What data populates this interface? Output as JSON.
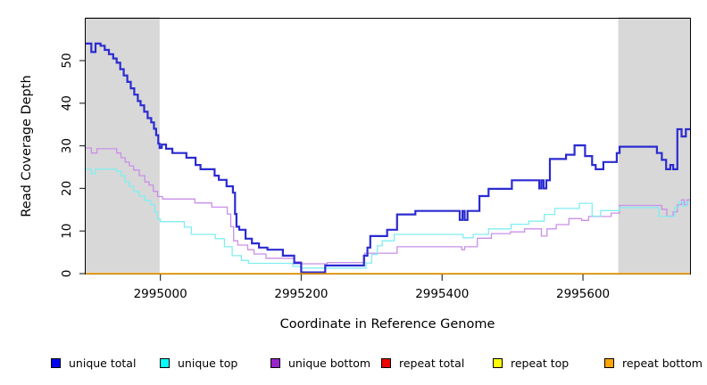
{
  "chart_data": {
    "type": "line",
    "step": true,
    "title": "",
    "xlabel": "Coordinate in Reference Genome",
    "ylabel": "Read Coverage Depth",
    "xlim": [
      2994894,
      2995752
    ],
    "ylim": [
      0,
      59
    ],
    "grid": false,
    "x_ticks": [
      2995000,
      2995200,
      2995400,
      2995600
    ],
    "y_ticks": [
      0,
      10,
      20,
      30,
      40,
      50
    ],
    "shaded_regions": [
      {
        "from": 2994894,
        "to": 2994999,
        "color": "#d8d8d8"
      },
      {
        "from": 2995650,
        "to": 2995752,
        "color": "#d8d8d8"
      }
    ],
    "series": [
      {
        "name": "repeat total",
        "color": "#dd0000",
        "width": 1,
        "points": [
          [
            2994894,
            0
          ]
        ]
      },
      {
        "name": "repeat top",
        "color": "#ffff00",
        "width": 1,
        "points": [
          [
            2994894,
            0
          ]
        ]
      },
      {
        "name": "unique bottom",
        "color": "#c98fe8",
        "width": 1.3,
        "points": [
          [
            2994894,
            29.5
          ],
          [
            2994902,
            28.3
          ],
          [
            2994910,
            29.3
          ],
          [
            2994938,
            28.3
          ],
          [
            2994944,
            27.2
          ],
          [
            2994950,
            26.2
          ],
          [
            2994956,
            25.3
          ],
          [
            2994962,
            24.3
          ],
          [
            2994970,
            23
          ],
          [
            2994978,
            21.5
          ],
          [
            2994984,
            20.8
          ],
          [
            2994990,
            19.3
          ],
          [
            2994996,
            18.1
          ],
          [
            2995003,
            17.5
          ],
          [
            2995049,
            16.6
          ],
          [
            2995073,
            15.6
          ],
          [
            2995095,
            14
          ],
          [
            2995100,
            11
          ],
          [
            2995104,
            7.7
          ],
          [
            2995110,
            6.7
          ],
          [
            2995124,
            5.6
          ],
          [
            2995133,
            4.6
          ],
          [
            2995150,
            3.6
          ],
          [
            2995190,
            2.8
          ],
          [
            2995200,
            2.3
          ],
          [
            2995237,
            2.6
          ],
          [
            2995290,
            4.8
          ],
          [
            2995336,
            6.3
          ],
          [
            2995428,
            5.6
          ],
          [
            2995432,
            6.3
          ],
          [
            2995450,
            8.3
          ],
          [
            2995470,
            9.4
          ],
          [
            2995497,
            9.8
          ],
          [
            2995517,
            10.5
          ],
          [
            2995541,
            8.8
          ],
          [
            2995549,
            10.5
          ],
          [
            2995562,
            11.5
          ],
          [
            2995580,
            12.9
          ],
          [
            2995598,
            12.5
          ],
          [
            2995608,
            13.4
          ],
          [
            2995640,
            14.2
          ],
          [
            2995652,
            16
          ],
          [
            2995712,
            15.1
          ],
          [
            2995719,
            13.5
          ],
          [
            2995728,
            14.5
          ],
          [
            2995734,
            16.2
          ],
          [
            2995740,
            17.3
          ],
          [
            2995744,
            16.2
          ],
          [
            2995748,
            17.3
          ]
        ]
      },
      {
        "name": "unique top",
        "color": "#80eef0",
        "width": 1.3,
        "points": [
          [
            2994894,
            24.5
          ],
          [
            2994902,
            23.5
          ],
          [
            2994908,
            24.5
          ],
          [
            2994938,
            24
          ],
          [
            2994944,
            23
          ],
          [
            2994950,
            21.5
          ],
          [
            2994956,
            20.5
          ],
          [
            2994962,
            19.2
          ],
          [
            2994970,
            18.2
          ],
          [
            2994978,
            17.2
          ],
          [
            2994986,
            16.2
          ],
          [
            2994992,
            14.5
          ],
          [
            2994996,
            12.8
          ],
          [
            2995000,
            12.2
          ],
          [
            2995034,
            10.9
          ],
          [
            2995044,
            9.2
          ],
          [
            2995078,
            8.2
          ],
          [
            2995091,
            6.3
          ],
          [
            2995102,
            4.2
          ],
          [
            2995115,
            3.1
          ],
          [
            2995125,
            2.4
          ],
          [
            2995188,
            1.7
          ],
          [
            2995200,
            1.3
          ],
          [
            2995292,
            2.5
          ],
          [
            2995300,
            4.5
          ],
          [
            2995308,
            6.5
          ],
          [
            2995315,
            7.7
          ],
          [
            2995332,
            9.2
          ],
          [
            2995430,
            8.4
          ],
          [
            2995444,
            9.2
          ],
          [
            2995466,
            10.5
          ],
          [
            2995498,
            11.6
          ],
          [
            2995523,
            12.3
          ],
          [
            2995545,
            13.9
          ],
          [
            2995560,
            15.3
          ],
          [
            2995595,
            16.5
          ],
          [
            2995613,
            13.5
          ],
          [
            2995625,
            14.8
          ],
          [
            2995652,
            15.5
          ],
          [
            2995708,
            13.4
          ],
          [
            2995730,
            15.5
          ],
          [
            2995736,
            16.8
          ],
          [
            2995742,
            15.8
          ],
          [
            2995747,
            16.8
          ]
        ]
      },
      {
        "name": "unique total",
        "color": "#2b2bd0",
        "width": 2.2,
        "points": [
          [
            2994894,
            54
          ],
          [
            2994902,
            52
          ],
          [
            2994908,
            54
          ],
          [
            2994915,
            53.5
          ],
          [
            2994921,
            52.5
          ],
          [
            2994927,
            51.5
          ],
          [
            2994933,
            50.5
          ],
          [
            2994938,
            49.5
          ],
          [
            2994943,
            48
          ],
          [
            2994948,
            46.5
          ],
          [
            2994953,
            45
          ],
          [
            2994958,
            43.5
          ],
          [
            2994963,
            42
          ],
          [
            2994968,
            40.5
          ],
          [
            2994972,
            39.5
          ],
          [
            2994977,
            38
          ],
          [
            2994982,
            36.5
          ],
          [
            2994987,
            35.5
          ],
          [
            2994991,
            34
          ],
          [
            2994994,
            32.5
          ],
          [
            2994997,
            30.5
          ],
          [
            2994999,
            29.5
          ],
          [
            2995002,
            30.3
          ],
          [
            2995008,
            29.3
          ],
          [
            2995017,
            28.3
          ],
          [
            2995037,
            27.2
          ],
          [
            2995050,
            25.5
          ],
          [
            2995057,
            24.5
          ],
          [
            2995077,
            23
          ],
          [
            2995083,
            22
          ],
          [
            2995094,
            20.5
          ],
          [
            2995103,
            19
          ],
          [
            2995106,
            14
          ],
          [
            2995108,
            11
          ],
          [
            2995112,
            10.3
          ],
          [
            2995121,
            8.2
          ],
          [
            2995130,
            7.1
          ],
          [
            2995140,
            6.1
          ],
          [
            2995152,
            5.6
          ],
          [
            2995174,
            4.2
          ],
          [
            2995190,
            2.5
          ],
          [
            2995200,
            0.3
          ],
          [
            2995234,
            1.9
          ],
          [
            2995289,
            4.2
          ],
          [
            2995294,
            6.1
          ],
          [
            2995298,
            8.8
          ],
          [
            2995322,
            10.3
          ],
          [
            2995336,
            13.9
          ],
          [
            2995362,
            14.7
          ],
          [
            2995425,
            12.6
          ],
          [
            2995429,
            14.7
          ],
          [
            2995432,
            12.6
          ],
          [
            2995436,
            14.7
          ],
          [
            2995453,
            18.2
          ],
          [
            2995466,
            19.9
          ],
          [
            2995499,
            21.9
          ],
          [
            2995538,
            20
          ],
          [
            2995541,
            21.9
          ],
          [
            2995544,
            20
          ],
          [
            2995548,
            21.9
          ],
          [
            2995553,
            26.9
          ],
          [
            2995576,
            27.9
          ],
          [
            2995588,
            30.1
          ],
          [
            2995603,
            27.6
          ],
          [
            2995613,
            25.5
          ],
          [
            2995618,
            24.5
          ],
          [
            2995629,
            26.2
          ],
          [
            2995648,
            28.3
          ],
          [
            2995652,
            29.8
          ],
          [
            2995705,
            28.3
          ],
          [
            2995712,
            26.7
          ],
          [
            2995718,
            24.5
          ],
          [
            2995724,
            25.5
          ],
          [
            2995728,
            24.5
          ],
          [
            2995734,
            33.9
          ],
          [
            2995740,
            32.2
          ],
          [
            2995746,
            33.9
          ]
        ]
      },
      {
        "name": "repeat bottom",
        "color": "#ffa500",
        "width": 1.6,
        "points": [
          [
            2994894,
            0
          ]
        ]
      }
    ]
  },
  "legend": {
    "items": [
      {
        "label": "unique total",
        "color": "#0000ee"
      },
      {
        "label": "unique top",
        "color": "#00ffff"
      },
      {
        "label": "unique bottom",
        "color": "#9922cc"
      },
      {
        "label": "repeat total",
        "color": "#ee0000"
      },
      {
        "label": "repeat top",
        "color": "#ffff00"
      },
      {
        "label": "repeat bottom",
        "color": "#ffa500"
      }
    ]
  }
}
